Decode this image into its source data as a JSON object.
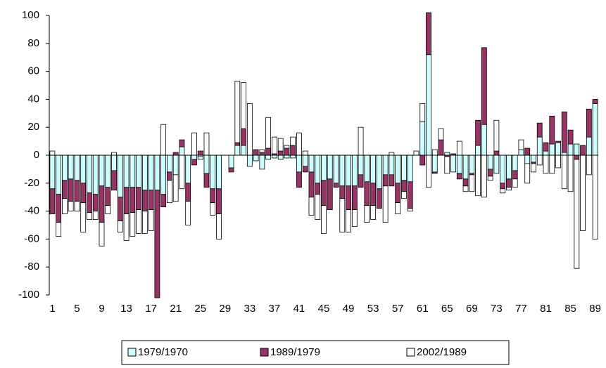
{
  "chart_data": {
    "type": "bar",
    "stacked": true,
    "categories": [
      "1",
      null,
      null,
      null,
      "5",
      null,
      null,
      null,
      "9",
      null,
      null,
      null,
      "13",
      null,
      null,
      null,
      "17",
      null,
      null,
      null,
      "21",
      null,
      null,
      null,
      "25",
      null,
      null,
      null,
      "29",
      null,
      null,
      null,
      "33",
      null,
      null,
      null,
      "37",
      null,
      null,
      null,
      "41",
      null,
      null,
      null,
      "45",
      null,
      null,
      null,
      "49",
      null,
      null,
      null,
      "53",
      null,
      null,
      null,
      "57",
      null,
      null,
      null,
      "61",
      null,
      null,
      null,
      "65",
      null,
      null,
      null,
      "69",
      null,
      null,
      null,
      "73",
      null,
      null,
      null,
      "77",
      null,
      null,
      null,
      "81",
      null,
      null,
      null,
      "85",
      null,
      null,
      null,
      "89"
    ],
    "series": [
      {
        "name": "1979/1970",
        "color": "#ccffff",
        "values": [
          -24,
          -28,
          -18,
          -17,
          -18,
          -20,
          -27,
          -28,
          -22,
          -23,
          -11,
          -30,
          -23,
          -23,
          -23,
          -25,
          -25,
          -25,
          -28,
          -12,
          -14,
          6,
          -20,
          -3,
          -1,
          -13,
          -24,
          -24,
          0,
          -9,
          7,
          7,
          -8,
          -4,
          -10,
          -3,
          -2,
          -3,
          -2,
          -2,
          -12,
          -8,
          -12,
          -20,
          -18,
          -17,
          -20,
          -22,
          -22,
          -22,
          -14,
          -19,
          -20,
          -24,
          -14,
          -14,
          -20,
          -18,
          -19,
          0,
          24,
          72,
          -12,
          0,
          2,
          -12,
          -13,
          -17,
          -13,
          7,
          22,
          -10,
          -13,
          -20,
          -17,
          -11,
          4,
          -6,
          -5,
          13,
          3,
          8,
          9,
          2,
          8,
          8,
          0,
          13,
          37
        ]
      },
      {
        "name": "1989/1979",
        "color": "#993366",
        "values": [
          -18,
          -20,
          -13,
          -16,
          -15,
          -14,
          -14,
          -12,
          -26,
          -13,
          -14,
          -17,
          -19,
          -18,
          -16,
          -15,
          -14,
          -77,
          -9,
          -6,
          2,
          5,
          -13,
          -4,
          3,
          -10,
          -10,
          -18,
          0,
          -3,
          2,
          12,
          0,
          4,
          2,
          5,
          1,
          3,
          5,
          7,
          -11,
          -4,
          -18,
          -8,
          -18,
          -22,
          -3,
          -9,
          -17,
          -17,
          -9,
          -17,
          -16,
          -14,
          -8,
          -8,
          -14,
          -8,
          -19,
          0,
          -7,
          30,
          -1,
          11,
          -1,
          1,
          -4,
          -5,
          -1,
          18,
          55,
          -5,
          3,
          -4,
          -6,
          -6,
          0,
          5,
          -1,
          10,
          6,
          20,
          1,
          29,
          10,
          -3,
          7,
          20,
          3
        ]
      },
      {
        "name": "2002/1989",
        "color": "#ffffff",
        "values": [
          3,
          -10,
          -11,
          -7,
          -7,
          -21,
          -5,
          -6,
          -17,
          -6,
          2,
          -8,
          -19,
          -17,
          -17,
          -16,
          -15,
          0,
          22,
          -16,
          -19,
          -24,
          -17,
          16,
          -2,
          16,
          -9,
          -18,
          0,
          0,
          44,
          33,
          37,
          0,
          2,
          22,
          12,
          9,
          2,
          6,
          16,
          3,
          -13,
          -18,
          -20,
          0,
          0,
          -24,
          -16,
          -12,
          20,
          -12,
          -10,
          0,
          -26,
          2,
          -8,
          -5,
          -2,
          3,
          13,
          -23,
          4,
          8,
          -12,
          0,
          10,
          -4,
          -12,
          -29,
          -30,
          -3,
          22,
          -3,
          -2,
          -6,
          7,
          -14,
          -6,
          -7,
          -13,
          -13,
          -9,
          -24,
          -26,
          -78,
          -54,
          -14,
          -60
        ]
      }
    ],
    "ylim": [
      -100,
      100
    ],
    "yticks": [
      -100,
      -80,
      -60,
      -40,
      -20,
      0,
      20,
      40,
      60,
      80,
      100
    ]
  }
}
